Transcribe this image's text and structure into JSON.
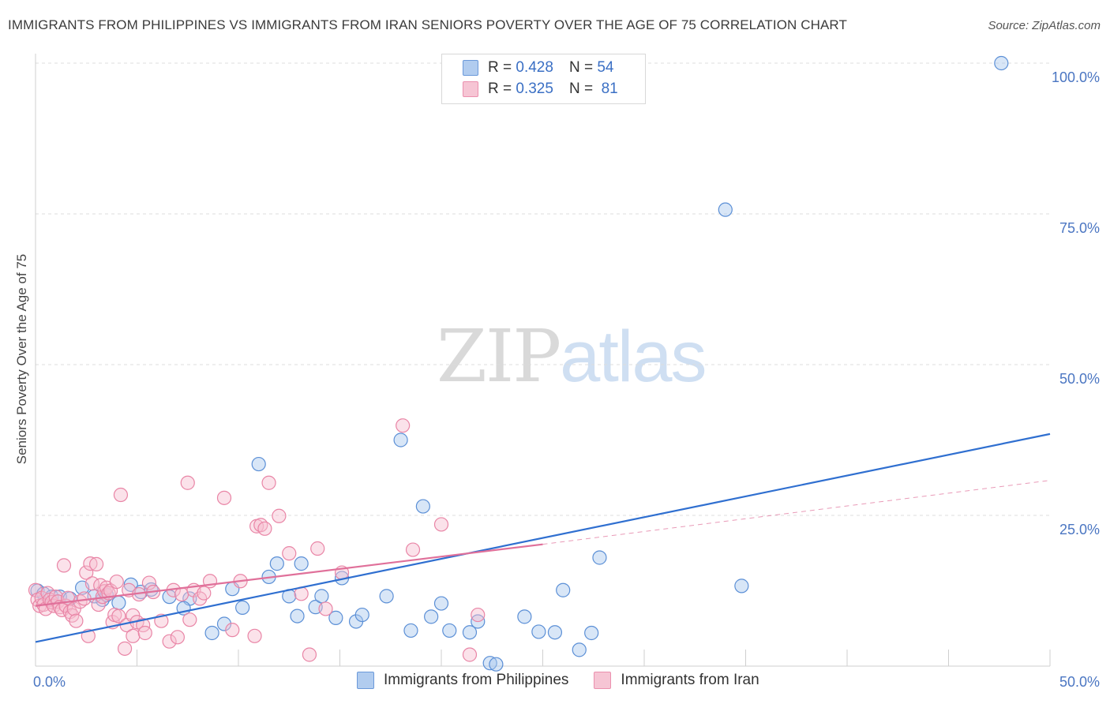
{
  "chart_data": {
    "type": "scatter",
    "title": "IMMIGRANTS FROM PHILIPPINES VS IMMIGRANTS FROM IRAN SENIORS POVERTY OVER THE AGE OF 75 CORRELATION CHART",
    "source": "Source: ZipAtlas.com",
    "xlabel": "",
    "ylabel": "Seniors Poverty Over the Age of 75",
    "xlim": [
      0,
      50
    ],
    "ylim": [
      0,
      100
    ],
    "x_tick_labels": [
      "0.0%",
      "50.0%"
    ],
    "y_tick_labels": [
      "100.0%",
      "75.0%",
      "50.0%",
      "25.0%"
    ],
    "y_tick_values": [
      100,
      75,
      50,
      25
    ],
    "grid": true,
    "legend_position": "top-center",
    "watermark": {
      "part1": "ZIP",
      "part2": "atlas"
    },
    "series": [
      {
        "name": "Immigrants from Philippines",
        "color": "#a9c7ee",
        "stroke": "#5b8fd6",
        "line_color": "#2f6fd0",
        "r_label": "R =",
        "r_value": "0.428",
        "n_label": "N =",
        "n_value": "54",
        "trend": {
          "x0": 0,
          "y0": 4.0,
          "x1": 50,
          "y1": 38.5
        },
        "points": [
          [
            0.1,
            12.5
          ],
          [
            0.4,
            12.0
          ],
          [
            0.8,
            11.5
          ],
          [
            1.2,
            11.5
          ],
          [
            1.7,
            11.2
          ],
          [
            2.3,
            13.0
          ],
          [
            3.3,
            11.0
          ],
          [
            2.9,
            11.6
          ],
          [
            3.5,
            11.8
          ],
          [
            4.1,
            10.5
          ],
          [
            4.7,
            13.5
          ],
          [
            5.2,
            12.3
          ],
          [
            5.7,
            12.7
          ],
          [
            6.6,
            11.5
          ],
          [
            7.6,
            11.2
          ],
          [
            7.3,
            9.6
          ],
          [
            8.7,
            5.5
          ],
          [
            9.3,
            7.0
          ],
          [
            9.7,
            12.8
          ],
          [
            10.2,
            9.7
          ],
          [
            11.0,
            33.5
          ],
          [
            11.5,
            14.8
          ],
          [
            11.9,
            17.0
          ],
          [
            12.5,
            11.6
          ],
          [
            12.9,
            8.3
          ],
          [
            13.1,
            17.0
          ],
          [
            13.8,
            9.8
          ],
          [
            14.1,
            11.6
          ],
          [
            14.8,
            8.0
          ],
          [
            15.1,
            14.6
          ],
          [
            15.8,
            7.4
          ],
          [
            16.1,
            8.5
          ],
          [
            17.3,
            11.6
          ],
          [
            18.0,
            37.5
          ],
          [
            18.5,
            5.9
          ],
          [
            19.1,
            26.5
          ],
          [
            19.5,
            8.2
          ],
          [
            20.0,
            10.4
          ],
          [
            20.4,
            5.9
          ],
          [
            21.4,
            5.6
          ],
          [
            21.8,
            7.4
          ],
          [
            22.4,
            0.5
          ],
          [
            22.7,
            0.3
          ],
          [
            24.1,
            8.2
          ],
          [
            24.8,
            5.7
          ],
          [
            25.6,
            5.6
          ],
          [
            26.0,
            12.6
          ],
          [
            26.8,
            2.7
          ],
          [
            27.4,
            5.5
          ],
          [
            27.8,
            18.0
          ],
          [
            34.0,
            75.7
          ],
          [
            34.8,
            13.3
          ],
          [
            47.6,
            100.0
          ]
        ]
      },
      {
        "name": "Immigrants from Iran",
        "color": "#f6bfd0",
        "stroke": "#e985a6",
        "line_color": "#e0709a",
        "r_label": "R =",
        "r_value": "0.325",
        "n_label": "N =",
        "n_value": "81",
        "trend": {
          "x0": 0,
          "y0": 10.0,
          "x1": 25,
          "y1": 20.2
        },
        "trend_dashed": {
          "x0": 25,
          "y0": 20.2,
          "x1": 50,
          "y1": 30.8
        },
        "points": [
          [
            0.0,
            12.6
          ],
          [
            0.1,
            11.0
          ],
          [
            0.2,
            10.0
          ],
          [
            0.3,
            11.3
          ],
          [
            0.4,
            10.2
          ],
          [
            0.5,
            9.5
          ],
          [
            0.6,
            12.1
          ],
          [
            0.7,
            11.0
          ],
          [
            0.8,
            10.6
          ],
          [
            0.9,
            10.0
          ],
          [
            1.0,
            11.5
          ],
          [
            1.1,
            10.7
          ],
          [
            1.2,
            9.8
          ],
          [
            1.3,
            9.3
          ],
          [
            1.4,
            16.7
          ],
          [
            1.5,
            10.0
          ],
          [
            1.6,
            11.3
          ],
          [
            1.7,
            9.0
          ],
          [
            1.8,
            8.4
          ],
          [
            1.9,
            9.5
          ],
          [
            2.0,
            7.5
          ],
          [
            2.2,
            10.7
          ],
          [
            2.4,
            11.2
          ],
          [
            2.5,
            15.5
          ],
          [
            2.6,
            5.0
          ],
          [
            2.7,
            17.0
          ],
          [
            2.8,
            13.7
          ],
          [
            3.0,
            16.9
          ],
          [
            3.1,
            10.2
          ],
          [
            3.2,
            13.4
          ],
          [
            3.3,
            11.5
          ],
          [
            3.4,
            12.4
          ],
          [
            3.5,
            13.0
          ],
          [
            3.6,
            12.1
          ],
          [
            3.7,
            12.5
          ],
          [
            3.8,
            7.3
          ],
          [
            3.9,
            8.5
          ],
          [
            4.0,
            14.0
          ],
          [
            4.1,
            8.3
          ],
          [
            4.2,
            28.4
          ],
          [
            4.4,
            2.9
          ],
          [
            4.5,
            6.8
          ],
          [
            4.6,
            12.6
          ],
          [
            4.8,
            8.4
          ],
          [
            4.8,
            5.0
          ],
          [
            5.0,
            7.3
          ],
          [
            5.1,
            11.9
          ],
          [
            5.3,
            6.8
          ],
          [
            5.4,
            5.5
          ],
          [
            5.6,
            13.8
          ],
          [
            5.8,
            12.3
          ],
          [
            6.2,
            7.5
          ],
          [
            6.6,
            4.1
          ],
          [
            6.8,
            12.6
          ],
          [
            7.0,
            4.8
          ],
          [
            7.2,
            11.9
          ],
          [
            7.5,
            30.4
          ],
          [
            7.6,
            7.7
          ],
          [
            7.8,
            12.6
          ],
          [
            8.1,
            11.2
          ],
          [
            8.3,
            12.1
          ],
          [
            8.6,
            14.1
          ],
          [
            9.3,
            27.9
          ],
          [
            9.7,
            6.0
          ],
          [
            10.1,
            14.1
          ],
          [
            10.8,
            5.0
          ],
          [
            10.9,
            23.2
          ],
          [
            11.1,
            23.4
          ],
          [
            11.3,
            22.8
          ],
          [
            11.5,
            30.4
          ],
          [
            12.0,
            24.9
          ],
          [
            12.5,
            18.7
          ],
          [
            13.1,
            12.0
          ],
          [
            13.5,
            1.9
          ],
          [
            13.9,
            19.5
          ],
          [
            14.3,
            9.5
          ],
          [
            15.1,
            15.5
          ],
          [
            18.1,
            39.9
          ],
          [
            18.6,
            19.3
          ],
          [
            20.0,
            23.5
          ],
          [
            21.4,
            1.9
          ],
          [
            21.8,
            8.5
          ]
        ]
      }
    ]
  }
}
